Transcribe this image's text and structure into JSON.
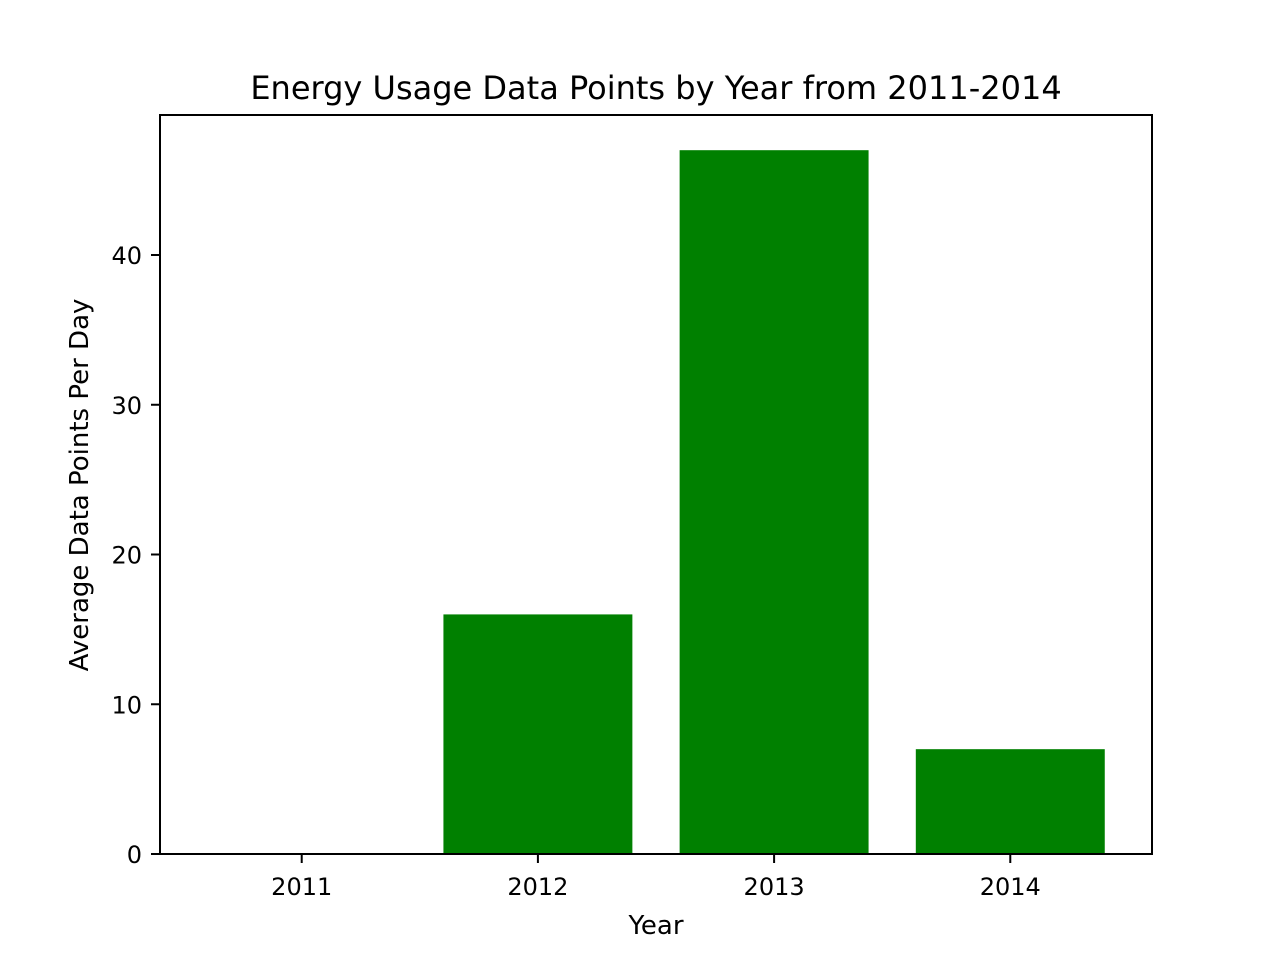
{
  "chart_data": {
    "type": "bar",
    "title": "Energy Usage Data Points by Year from 2011-2014",
    "xlabel": "Year",
    "ylabel": "Average Data Points Per Day",
    "categories": [
      "2011",
      "2012",
      "2013",
      "2014"
    ],
    "values": [
      0,
      16,
      47,
      7
    ],
    "ylim": [
      0,
      49.35
    ],
    "yticks": [
      0,
      10,
      20,
      30,
      40
    ],
    "bar_color": "#008000",
    "grid": false,
    "legend": null
  }
}
